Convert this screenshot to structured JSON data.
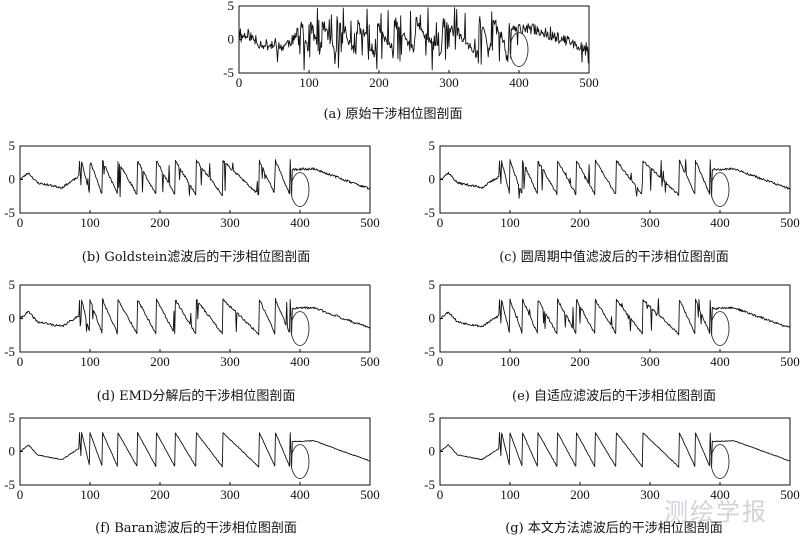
{
  "figure": {
    "watermark": "测绘学报",
    "panels": [
      {
        "id": "a",
        "caption": "(a) 原始干涉相位图剖面",
        "seed": 11,
        "mode": "raw"
      },
      {
        "id": "b",
        "caption": "(b) Goldstein滤波后的干涉相位图剖面",
        "seed": 23,
        "mode": "medium"
      },
      {
        "id": "c",
        "caption": "(c) 圆周期中值滤波后的干涉相位图剖面",
        "seed": 37,
        "mode": "medium"
      },
      {
        "id": "d",
        "caption": "(d) EMD分解后的干涉相位图剖面",
        "seed": 41,
        "mode": "medium"
      },
      {
        "id": "e",
        "caption": "(e) 自适应滤波后的干涉相位图剖面",
        "seed": 53,
        "mode": "medium"
      },
      {
        "id": "f",
        "caption": "(f) Baran滤波后的干涉相位图剖面",
        "seed": 67,
        "mode": "smooth"
      },
      {
        "id": "g",
        "caption": "(g) 本文方法滤波后的干涉相位图剖面",
        "seed": 79,
        "mode": "smooth"
      }
    ]
  },
  "chart_data": {
    "type": "line",
    "x_ticks": [
      0,
      100,
      200,
      300,
      400,
      500
    ],
    "y_ticks": [
      -5,
      0,
      5
    ],
    "xlim": [
      0,
      500
    ],
    "ylim": [
      -5,
      5
    ],
    "grid": false,
    "highlight": {
      "shape": "ellipse",
      "x_center": 400,
      "y_center": -1.5
    },
    "wrap_points": [
      88,
      100,
      118,
      140,
      168,
      195,
      222,
      252,
      290,
      342,
      365,
      386
    ],
    "trend_keypoints": [
      {
        "x": 0,
        "y": 0.0
      },
      {
        "x": 12,
        "y": 1.0
      },
      {
        "x": 25,
        "y": -0.5
      },
      {
        "x": 60,
        "y": -1.2
      },
      {
        "x": 85,
        "y": 0.5
      },
      {
        "x": 388,
        "y": 1.5
      },
      {
        "x": 420,
        "y": 1.6
      },
      {
        "x": 470,
        "y": -0.3
      },
      {
        "x": 500,
        "y": -1.4
      }
    ]
  }
}
